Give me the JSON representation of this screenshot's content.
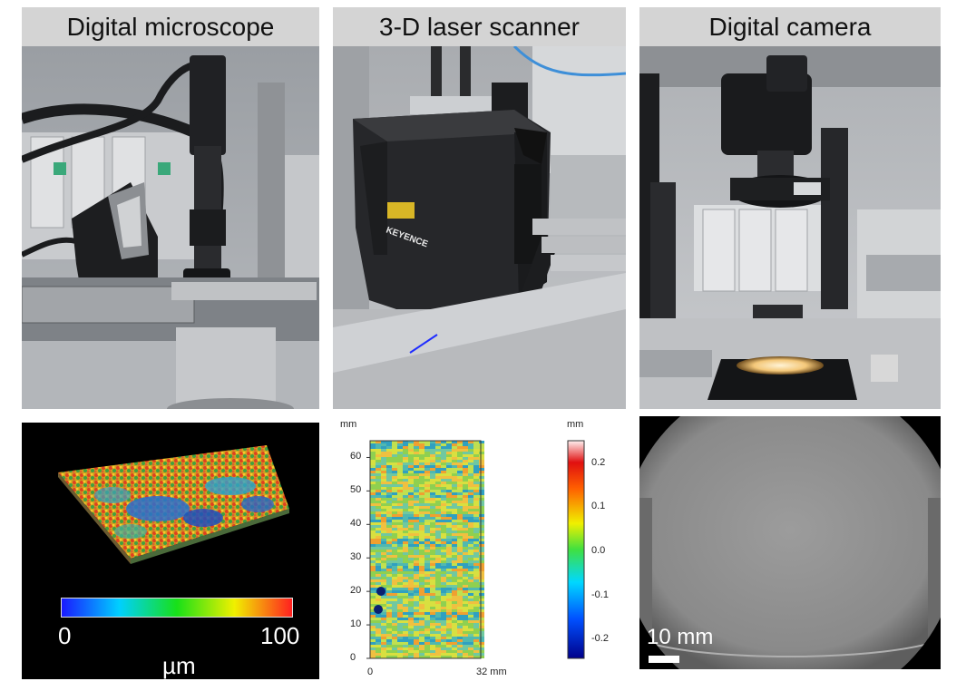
{
  "columns": [
    {
      "title": "Digital microscope"
    },
    {
      "title": "3-D laser scanner"
    },
    {
      "title": "Digital camera"
    }
  ],
  "scanner_photo": {
    "brand_text": "KEYENCE"
  },
  "microscope_panel": {
    "colorbar": {
      "min_label": "0",
      "max_label": "100",
      "unit": "µm",
      "colors": [
        "#1a1aff",
        "#00d0ff",
        "#18e018",
        "#f0f000",
        "#ff2020"
      ]
    }
  },
  "scanner_map": {
    "y_unit": "mm",
    "x_end_label": "32 mm",
    "y_ticks": [
      "0",
      "10",
      "20",
      "30",
      "40",
      "50",
      "60"
    ],
    "x_ticks": [
      "0",
      "32 mm"
    ],
    "colorbar": {
      "unit": "mm",
      "ticks": [
        "0.2",
        "0.1",
        "0.0",
        "-0.1",
        "-0.2"
      ]
    }
  },
  "camera_image": {
    "scale_label": "10 mm"
  }
}
